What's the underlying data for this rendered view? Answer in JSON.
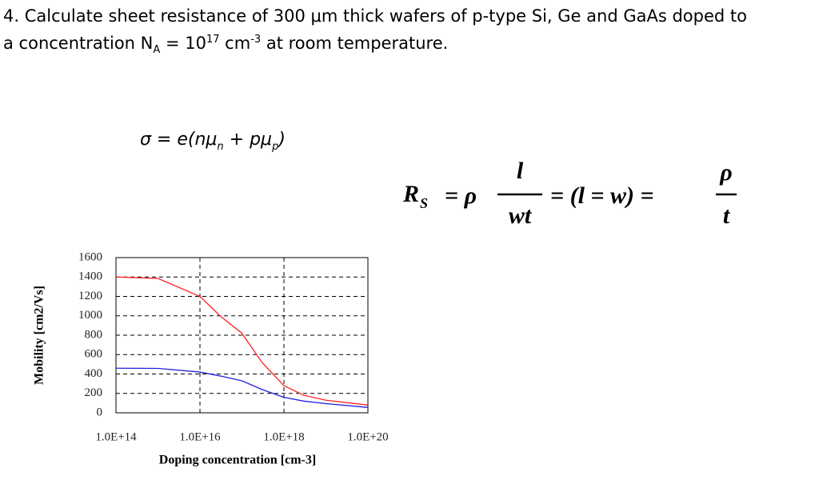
{
  "question": {
    "line1": "4. Calculate sheet resistance of 300 μm thick wafers of p-type Si, Ge and GaAs doped to",
    "line2_a": "a concentration N",
    "line2_sub": "A",
    "line2_b": " = 10",
    "line2_sup1": "17",
    "line2_c": " cm",
    "line2_sup2": "-3",
    "line2_d": " at room temperature."
  },
  "formula_sigma": {
    "main": "σ = e(nμ",
    "sub1": "n",
    "mid": " + pμ",
    "sub2": "p",
    "end": ")"
  },
  "formula_rs": {
    "r": "R",
    "r_sub": "S",
    "eq1": "= ρ",
    "num": "l",
    "den": "wt",
    "eq2": "= (l = w) =",
    "num2": "ρ",
    "den2": "t"
  },
  "chart_data": {
    "type": "line",
    "x_label": "Doping concentration [cm-3]",
    "y_label": "Mobility [cm2/Vs]",
    "log_x": true,
    "grid": true,
    "x": [
      100000000000000.0,
      1000000000000000.0,
      1e+16,
      3e+16,
      1e+17,
      3e+17,
      1e+18,
      3e+18,
      1e+19,
      1e+20
    ],
    "series": [
      {
        "color": "#ff2020",
        "values": [
          1400,
          1385,
          1200,
          1000,
          820,
          520,
          280,
          180,
          130,
          80
        ]
      },
      {
        "color": "#2020e0",
        "values": [
          460,
          458,
          420,
          380,
          330,
          240,
          160,
          120,
          95,
          55
        ]
      }
    ],
    "xlim": [
      100000000000000.0,
      1e+20
    ],
    "xticks": [
      {
        "value": 100000000000000.0,
        "label": "1.0E+14"
      },
      {
        "value": 1e+16,
        "label": "1.0E+16"
      },
      {
        "value": 1e+18,
        "label": "1.0E+18"
      },
      {
        "value": 1e+20,
        "label": "1.0E+20"
      }
    ],
    "ylim": [
      0,
      1600
    ],
    "yticks": [
      0,
      200,
      400,
      600,
      800,
      1000,
      1200,
      1400,
      1600
    ]
  }
}
